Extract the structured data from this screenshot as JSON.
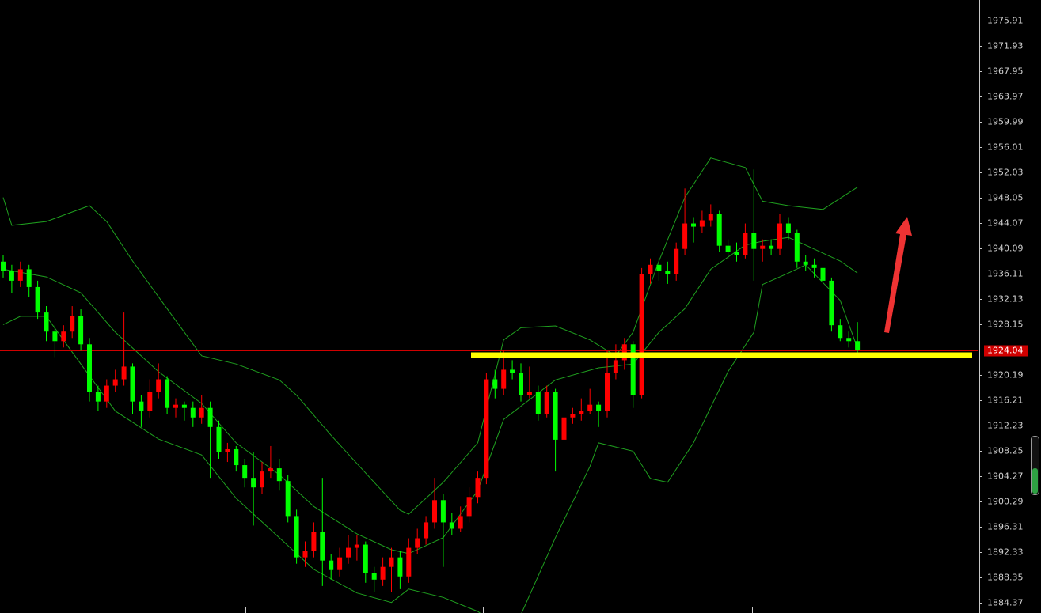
{
  "chart_data": {
    "type": "candlestick",
    "up_color": "#ff0000",
    "down_color": "#00ff00",
    "band_color": "#1fa01f",
    "price_line_color": "#d00000",
    "support_color": "#ffff00",
    "ylim": [
      1882.75,
      1979.14
    ],
    "yticks": [
      1975.91,
      1971.93,
      1967.95,
      1963.97,
      1959.99,
      1956.01,
      1952.03,
      1948.05,
      1944.07,
      1940.09,
      1936.11,
      1932.13,
      1928.15,
      1920.19,
      1916.21,
      1912.23,
      1908.25,
      1904.27,
      1900.29,
      1896.31,
      1892.33,
      1888.35,
      1884.37
    ],
    "current_price": 1924.04,
    "support_level": 1923.3,
    "open": [
      1938.0,
      1936.5,
      1935.0,
      1936.8,
      1934.0,
      1930.0,
      1927.0,
      1925.5,
      1927.0,
      1929.5,
      1925.0,
      1917.5,
      1916.0,
      1918.5,
      1919.5,
      1921.5,
      1916.0,
      1914.5,
      1917.5,
      1919.5,
      1915.0,
      1915.5,
      1915.0,
      1913.5,
      1915.0,
      1912.0,
      1908.0,
      1908.5,
      1906.0,
      1904.0,
      1902.5,
      1905.0,
      1905.5,
      1903.5,
      1898.0,
      1891.5,
      1892.5,
      1895.5,
      1891.0,
      1889.5,
      1891.5,
      1893.0,
      1893.5,
      1889.0,
      1888.0,
      1890.0,
      1891.5,
      1888.5,
      1893.0,
      1894.5,
      1897.0,
      1900.5,
      1897.0,
      1896.0,
      1898.0,
      1901.0,
      1904.0,
      1919.5,
      1918.0,
      1921.0,
      1920.5,
      1917.0,
      1917.5,
      1914.0,
      1917.5,
      1910.0,
      1913.5,
      1914.0,
      1914.5,
      1915.5,
      1914.5,
      1920.5,
      1922.5,
      1925.0,
      1917.0,
      1936.0,
      1937.5,
      1936.5,
      1936.0,
      1940.0,
      1944.0,
      1943.5,
      1944.5,
      1945.5,
      1940.5,
      1939.5,
      1939.0,
      1942.5,
      1940.0,
      1940.5,
      1940.0,
      1944.0,
      1942.5,
      1938.0,
      1937.5,
      1937.0,
      1935.0,
      1928.0,
      1926.0,
      1925.5
    ],
    "high": [
      1939.0,
      1937.5,
      1938.0,
      1937.5,
      1935.0,
      1931.0,
      1928.0,
      1928.0,
      1931.0,
      1930.5,
      1926.0,
      1918.5,
      1919.5,
      1921.0,
      1930.0,
      1922.0,
      1917.0,
      1919.5,
      1922.0,
      1920.0,
      1916.5,
      1916.0,
      1916.0,
      1917.0,
      1916.0,
      1913.0,
      1909.5,
      1909.0,
      1907.0,
      1908.0,
      1906.5,
      1909.0,
      1907.0,
      1904.5,
      1899.0,
      1894.0,
      1897.0,
      1904.0,
      1892.0,
      1893.0,
      1895.0,
      1895.0,
      1894.0,
      1890.0,
      1891.5,
      1893.0,
      1892.5,
      1894.5,
      1896.0,
      1898.0,
      1904.0,
      1901.5,
      1898.5,
      1899.5,
      1902.5,
      1905.0,
      1920.5,
      1921.0,
      1924.0,
      1922.5,
      1922.0,
      1921.5,
      1918.5,
      1918.5,
      1918.0,
      1916.0,
      1915.0,
      1916.5,
      1918.0,
      1916.0,
      1924.0,
      1925.0,
      1926.0,
      1925.5,
      1937.0,
      1938.5,
      1938.5,
      1938.0,
      1941.0,
      1949.5,
      1945.0,
      1946.0,
      1947.0,
      1946.0,
      1941.5,
      1941.0,
      1944.0,
      1952.5,
      1941.5,
      1941.5,
      1945.5,
      1945.0,
      1943.0,
      1939.0,
      1938.5,
      1937.5,
      1935.5,
      1929.0,
      1927.0,
      1928.5
    ],
    "low": [
      1935.5,
      1933.0,
      1934.0,
      1932.5,
      1929.0,
      1925.5,
      1923.0,
      1924.5,
      1926.0,
      1924.0,
      1916.0,
      1914.5,
      1915.0,
      1917.5,
      1918.5,
      1914.0,
      1912.0,
      1913.5,
      1916.5,
      1914.0,
      1913.5,
      1913.0,
      1912.0,
      1912.5,
      1904.0,
      1907.0,
      1906.5,
      1905.0,
      1902.5,
      1896.5,
      1901.5,
      1904.0,
      1902.0,
      1897.0,
      1890.5,
      1890.0,
      1891.5,
      1887.0,
      1888.0,
      1888.5,
      1890.5,
      1891.0,
      1887.5,
      1886.0,
      1887.0,
      1886.0,
      1886.5,
      1887.5,
      1892.0,
      1893.5,
      1896.0,
      1890.0,
      1895.0,
      1895.5,
      1897.0,
      1900.0,
      1903.0,
      1916.5,
      1917.0,
      1919.5,
      1916.0,
      1916.5,
      1913.0,
      1913.5,
      1905.0,
      1909.0,
      1912.5,
      1913.0,
      1914.0,
      1912.0,
      1913.5,
      1919.5,
      1921.0,
      1915.0,
      1916.5,
      1934.5,
      1935.0,
      1934.5,
      1935.0,
      1939.0,
      1941.0,
      1942.5,
      1943.5,
      1939.5,
      1938.5,
      1938.0,
      1938.5,
      1935.0,
      1938.0,
      1939.0,
      1939.0,
      1941.5,
      1937.0,
      1936.5,
      1935.5,
      1933.5,
      1927.0,
      1925.5,
      1924.5,
      1923.5
    ],
    "close": [
      1936.5,
      1935.0,
      1936.8,
      1934.0,
      1930.0,
      1927.0,
      1925.5,
      1927.0,
      1929.5,
      1925.0,
      1917.5,
      1916.0,
      1918.5,
      1919.5,
      1921.5,
      1916.0,
      1914.5,
      1917.5,
      1919.5,
      1915.0,
      1915.5,
      1915.0,
      1913.5,
      1915.0,
      1912.0,
      1908.0,
      1908.5,
      1906.0,
      1904.0,
      1902.5,
      1905.0,
      1905.5,
      1903.5,
      1898.0,
      1891.5,
      1892.5,
      1895.5,
      1891.0,
      1889.5,
      1891.5,
      1893.0,
      1893.5,
      1889.0,
      1888.0,
      1890.0,
      1891.5,
      1888.5,
      1893.0,
      1894.5,
      1897.0,
      1900.5,
      1897.0,
      1896.0,
      1898.0,
      1901.0,
      1904.0,
      1919.5,
      1918.0,
      1921.0,
      1920.5,
      1917.0,
      1917.5,
      1914.0,
      1917.5,
      1910.0,
      1913.5,
      1914.0,
      1914.5,
      1915.5,
      1914.5,
      1920.5,
      1922.5,
      1925.0,
      1917.0,
      1936.0,
      1937.5,
      1936.5,
      1936.0,
      1940.0,
      1944.0,
      1943.5,
      1944.5,
      1945.5,
      1940.5,
      1939.5,
      1939.0,
      1942.5,
      1940.0,
      1940.5,
      1940.0,
      1944.0,
      1942.5,
      1938.0,
      1937.5,
      1937.0,
      1935.0,
      1928.0,
      1926.0,
      1925.5,
      1924.04
    ],
    "bands": [
      {
        "x": [
          0,
          1,
          5,
          10,
          12,
          15,
          19,
          23,
          27,
          32,
          34,
          38,
          43,
          46,
          47,
          51,
          55,
          58,
          60,
          64,
          68,
          71,
          73,
          76,
          79,
          82,
          86,
          88,
          91,
          95,
          99
        ],
        "values": [
          1948.1,
          1943.7,
          1944.3,
          1946.8,
          1944.3,
          1938.1,
          1930.6,
          1923.2,
          1921.9,
          1919.4,
          1917.0,
          1910.7,
          1903.3,
          1898.9,
          1898.3,
          1903.3,
          1909.5,
          1925.7,
          1927.6,
          1927.9,
          1925.7,
          1923.2,
          1926.9,
          1938.1,
          1948.1,
          1954.3,
          1952.8,
          1947.5,
          1946.8,
          1946.2,
          1949.7
        ]
      },
      {
        "x": [
          0,
          5,
          9,
          13,
          18,
          23,
          27,
          32,
          36,
          41,
          45,
          47,
          51,
          55,
          58,
          64,
          69,
          73,
          76,
          79,
          82,
          86,
          88,
          91,
          93,
          97,
          99
        ],
        "values": [
          1936.8,
          1935.6,
          1933.1,
          1926.9,
          1920.7,
          1915.7,
          1909.5,
          1904.5,
          1899.5,
          1895.2,
          1892.7,
          1892.1,
          1894.6,
          1902.0,
          1913.2,
          1919.4,
          1921.3,
          1921.9,
          1926.9,
          1930.6,
          1936.8,
          1940.6,
          1941.2,
          1941.8,
          1940.6,
          1938.1,
          1936.2
        ]
      },
      {
        "x": [
          0,
          2,
          5,
          9,
          13,
          18,
          23,
          27,
          32,
          36,
          41,
          45,
          47,
          51,
          55,
          58,
          60,
          64,
          68,
          69,
          73,
          75,
          77,
          80,
          84,
          87,
          88,
          91,
          93,
          97,
          99
        ],
        "values": [
          1928.1,
          1929.4,
          1929.4,
          1921.9,
          1914.5,
          1910.1,
          1907.6,
          1900.8,
          1894.6,
          1889.6,
          1885.9,
          1884.4,
          1886.5,
          1885.2,
          1883.0,
          1880.0,
          1882.5,
          1894.6,
          1905.8,
          1909.5,
          1908.2,
          1903.9,
          1903.3,
          1909.5,
          1920.7,
          1926.9,
          1934.4,
          1936.2,
          1937.5,
          1931.9,
          1924.4
        ]
      }
    ]
  }
}
